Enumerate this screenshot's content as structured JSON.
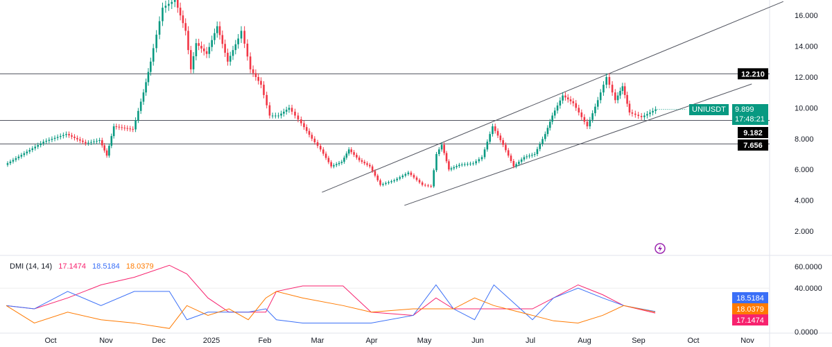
{
  "chart_data": [
    {
      "type": "candlestick",
      "symbol": "UNIUSDT",
      "last_price": "9.899",
      "countdown": "17:48:21",
      "y_ticks": [
        "16.000",
        "14.000",
        "12.000",
        "10.000",
        "8.000",
        "6.000",
        "4.000",
        "2.000"
      ],
      "x_ticks": [
        "Oct",
        "Nov",
        "Dec",
        "2025",
        "Feb",
        "Mar",
        "Apr",
        "May",
        "Jun",
        "Jul",
        "Aug",
        "Sep",
        "Oct",
        "Nov"
      ],
      "ylim": [
        0.8,
        17.5
      ],
      "up_color": "#089981",
      "down_color": "#f23645",
      "closes": [
        [
          "2024-09-06",
          6.3
        ],
        [
          "2024-09-28",
          7.8
        ],
        [
          "2024-10-11",
          8.3
        ],
        [
          "2024-10-22",
          7.7
        ],
        [
          "2024-10-30",
          7.9
        ],
        [
          "2024-11-03",
          6.9
        ],
        [
          "2024-11-07",
          8.8
        ],
        [
          "2024-11-18",
          8.6
        ],
        [
          "2024-11-24",
          11
        ],
        [
          "2024-11-28",
          13
        ],
        [
          "2024-12-05",
          16.5
        ],
        [
          "2024-12-12",
          17
        ],
        [
          "2024-12-18",
          15
        ],
        [
          "2024-12-21",
          12.5
        ],
        [
          "2024-12-24",
          14.2
        ],
        [
          "2024-12-30",
          13.5
        ],
        [
          "2025-01-05",
          15.3
        ],
        [
          "2025-01-11",
          13
        ],
        [
          "2025-01-17",
          14.5
        ],
        [
          "2025-01-19",
          15
        ],
        [
          "2025-01-24",
          12.5
        ],
        [
          "2025-01-30",
          11.5
        ],
        [
          "2025-02-04",
          9.5
        ],
        [
          "2025-02-09",
          9.5
        ],
        [
          "2025-02-15",
          10
        ],
        [
          "2025-02-22",
          9
        ],
        [
          "2025-02-28",
          8
        ],
        [
          "2025-03-05",
          7.3
        ],
        [
          "2025-03-11",
          6.2
        ],
        [
          "2025-03-17",
          6.5
        ],
        [
          "2025-03-21",
          7.3
        ],
        [
          "2025-03-27",
          6.6
        ],
        [
          "2025-04-02",
          6.2
        ],
        [
          "2025-04-08",
          5
        ],
        [
          "2025-04-16",
          5.3
        ],
        [
          "2025-04-24",
          5.8
        ],
        [
          "2025-05-02",
          5
        ],
        [
          "2025-05-07",
          4.9
        ],
        [
          "2025-05-10",
          7
        ],
        [
          "2025-05-13",
          7.6
        ],
        [
          "2025-05-17",
          6
        ],
        [
          "2025-05-23",
          6.3
        ],
        [
          "2025-05-31",
          6.4
        ],
        [
          "2025-06-05",
          6.8
        ],
        [
          "2025-06-11",
          8.8
        ],
        [
          "2025-06-17",
          7.6
        ],
        [
          "2025-06-23",
          6.2
        ],
        [
          "2025-06-29",
          6.8
        ],
        [
          "2025-07-05",
          7
        ],
        [
          "2025-07-11",
          8.3
        ],
        [
          "2025-07-15",
          9.5
        ],
        [
          "2025-07-21",
          10.8
        ],
        [
          "2025-07-27",
          10.3
        ],
        [
          "2025-08-04",
          8.8
        ],
        [
          "2025-08-10",
          10.5
        ],
        [
          "2025-08-15",
          12
        ],
        [
          "2025-08-20",
          10.5
        ],
        [
          "2025-08-24",
          11.4
        ],
        [
          "2025-08-28",
          9.7
        ],
        [
          "2025-09-04",
          9.4
        ],
        [
          "2025-09-12",
          9.899
        ]
      ],
      "levels": [
        {
          "value": 12.21,
          "label": "12.210"
        },
        {
          "value": 9.182,
          "label": "9.182"
        },
        {
          "value": 7.656,
          "label": "7.656"
        }
      ],
      "trendlines": [
        [
          [
            "2025-03-05",
            4.52
          ],
          [
            "2025-11-23",
            16.9
          ]
        ],
        [
          [
            "2025-04-21",
            3.67
          ],
          [
            "2025-11-05",
            11.55
          ]
        ]
      ]
    },
    {
      "type": "line",
      "title": "DMI (14, 14)",
      "ylim": [
        0,
        65
      ],
      "y_ticks": [
        "60.0000",
        "40.0000",
        "0.0000"
      ],
      "x": [
        "2024-09-06",
        "2024-09-22",
        "2024-10-11",
        "2024-10-30",
        "2024-11-18",
        "2024-12-08",
        "2024-12-18",
        "2024-12-30",
        "2025-01-11",
        "2025-01-22",
        "2025-02-01",
        "2025-02-07",
        "2025-02-22",
        "2025-03-17",
        "2025-04-02",
        "2025-04-26",
        "2025-05-09",
        "2025-05-19",
        "2025-05-31",
        "2025-06-11",
        "2025-07-03",
        "2025-07-15",
        "2025-07-29",
        "2025-08-12",
        "2025-08-24",
        "2025-09-11"
      ],
      "series": [
        {
          "name": "17.1474",
          "color": "#f7226e",
          "values": [
            24,
            21,
            31,
            43,
            50,
            61,
            53,
            31,
            18,
            18,
            18,
            37,
            42,
            42,
            18,
            15,
            31,
            21,
            21,
            21,
            21,
            31,
            43,
            34,
            24,
            17.1474
          ]
        },
        {
          "name": "18.5184",
          "color": "#3a6ff7",
          "values": [
            24,
            21,
            37,
            24,
            37,
            37,
            11,
            18,
            18,
            18,
            21,
            11,
            8,
            8,
            8,
            15,
            43,
            21,
            11,
            43,
            11,
            31,
            40,
            31,
            24,
            18.5184
          ]
        },
        {
          "name": "18.0379",
          "color": "#ff7a00",
          "values": [
            24,
            8,
            18,
            11,
            8,
            3,
            24,
            15,
            21,
            11,
            31,
            37,
            31,
            24,
            18,
            21,
            21,
            21,
            31,
            24,
            15,
            10,
            8,
            15,
            24,
            18.0379
          ]
        }
      ]
    }
  ]
}
